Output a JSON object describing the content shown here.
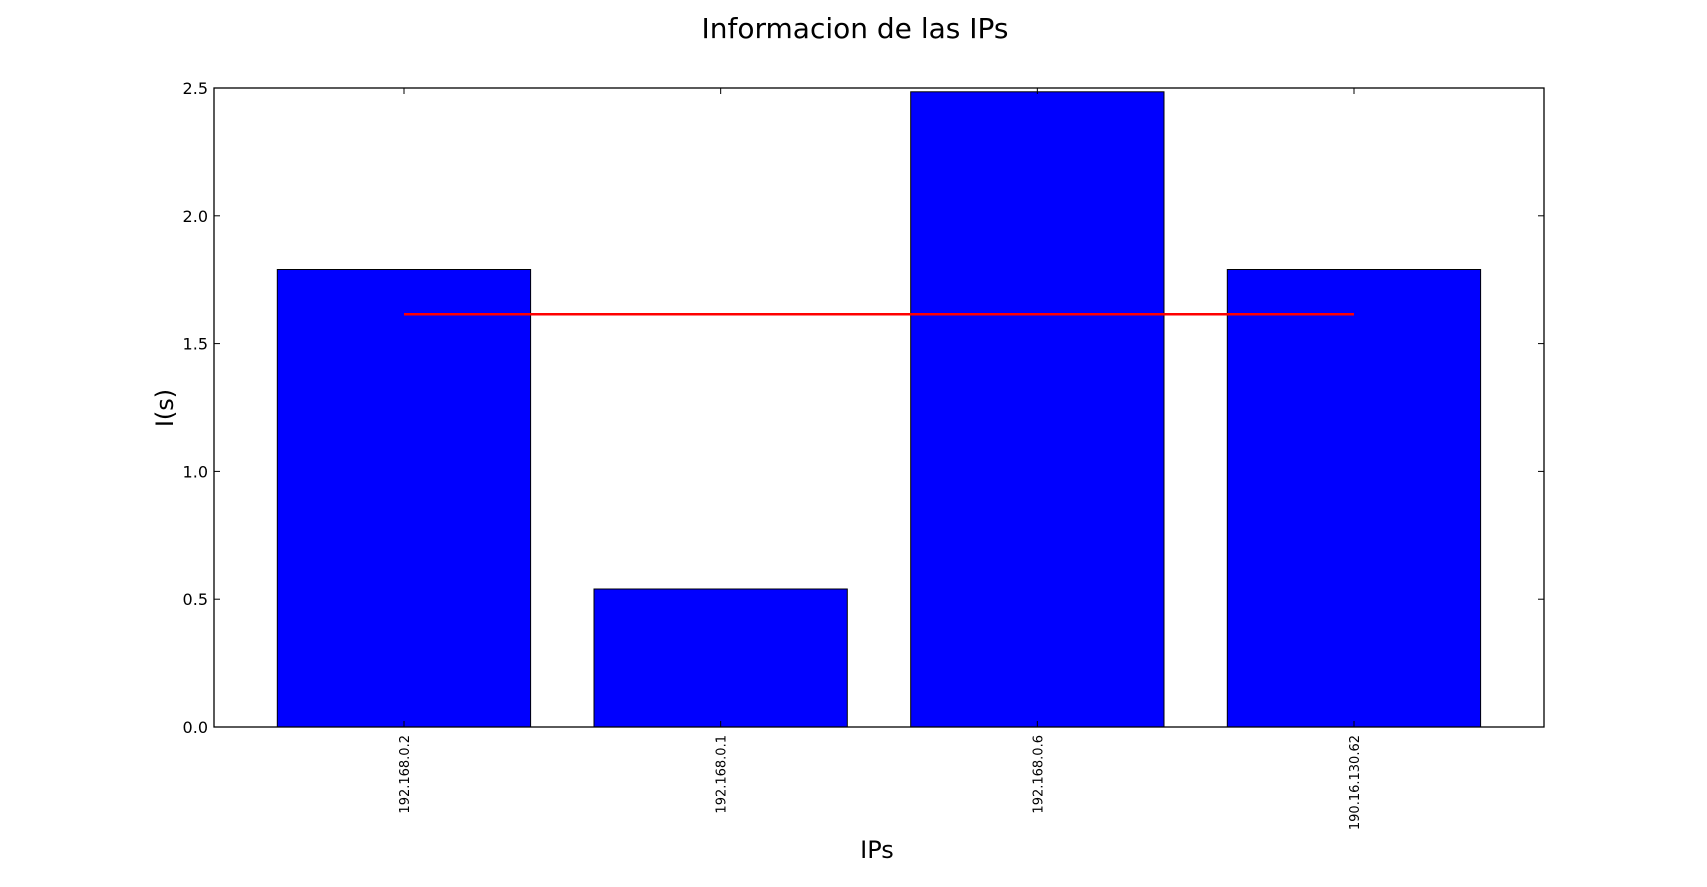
{
  "chart_data": {
    "type": "bar",
    "title": "Informacion de las IPs",
    "xlabel": "IPs",
    "ylabel": "I(s)",
    "categories": [
      "192.168.0.2",
      "192.168.0.1",
      "192.168.0.6",
      "190.16.130.62"
    ],
    "values": [
      1.79,
      0.54,
      2.485,
      1.79
    ],
    "ylim": [
      0,
      2.5
    ],
    "yticks": [
      "0.0",
      "0.5",
      "1.0",
      "1.5",
      "2.0",
      "2.5"
    ],
    "reference_line": {
      "value": 1.615
    },
    "grid": false,
    "colors": {
      "bar": "#0000ff",
      "reference_line": "#ff0000"
    }
  }
}
